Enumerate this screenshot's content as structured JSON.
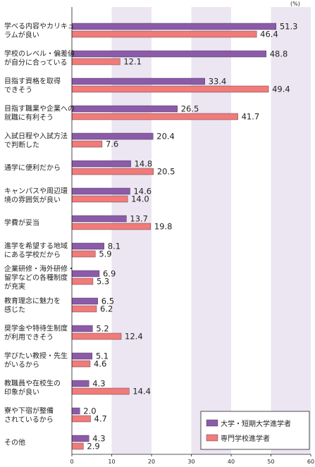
{
  "chart_data": {
    "type": "bar",
    "orientation": "horizontal",
    "unit": "(%)",
    "xlim": [
      0,
      60
    ],
    "ticks": [
      "0",
      "10",
      "20",
      "30",
      "40",
      "50",
      "60"
    ],
    "categories": [
      [
        "学べる内容やカリキュ",
        "ラムが良い"
      ],
      [
        "学校のレベル・偏差値",
        "が自分に合っている"
      ],
      [
        "目指す資格を取得",
        "できそう"
      ],
      [
        "目指す職業や企業への",
        "就職に有利そう"
      ],
      [
        "入試日程や入試方法",
        "で判断した"
      ],
      [
        "通学に便利だから"
      ],
      [
        "キャンパスや周辺環",
        "境の雰囲気が良い"
      ],
      [
        "学費が妥当"
      ],
      [
        "進学を希望する地域",
        "にある学校だから"
      ],
      [
        "企業研修・海外研修・",
        "留学などの各種制度",
        "が充実"
      ],
      [
        "教育理念に魅力を",
        "感じた"
      ],
      [
        "奨学金や特待生制度",
        "が利用できそう"
      ],
      [
        "学びたい教授・先生",
        "がいるから"
      ],
      [
        "教職員や在校生の",
        "印象が良い"
      ],
      [
        "寮や下宿が整備",
        "されているから"
      ],
      [
        "その他"
      ]
    ],
    "series": [
      {
        "name": "大学・短期大学進学者",
        "color": "#8b5ba8",
        "values": [
          "51.3",
          "48.8",
          "33.4",
          "26.5",
          "20.4",
          "14.8",
          "14.6",
          "13.7",
          "8.1",
          "6.9",
          "6.5",
          "5.2",
          "5.1",
          "4.3",
          "2.0",
          "4.3"
        ]
      },
      {
        "name": "専門学校進学者",
        "color": "#f07b78",
        "values": [
          "46.4",
          "12.1",
          "49.4",
          "41.7",
          "7.6",
          "20.5",
          "14.0",
          "19.8",
          "5.9",
          "5.3",
          "6.2",
          "12.4",
          "4.6",
          "14.4",
          "4.7",
          "2.9"
        ]
      }
    ],
    "band_color": "#ece6f2",
    "legend_position": "bottom-right"
  }
}
